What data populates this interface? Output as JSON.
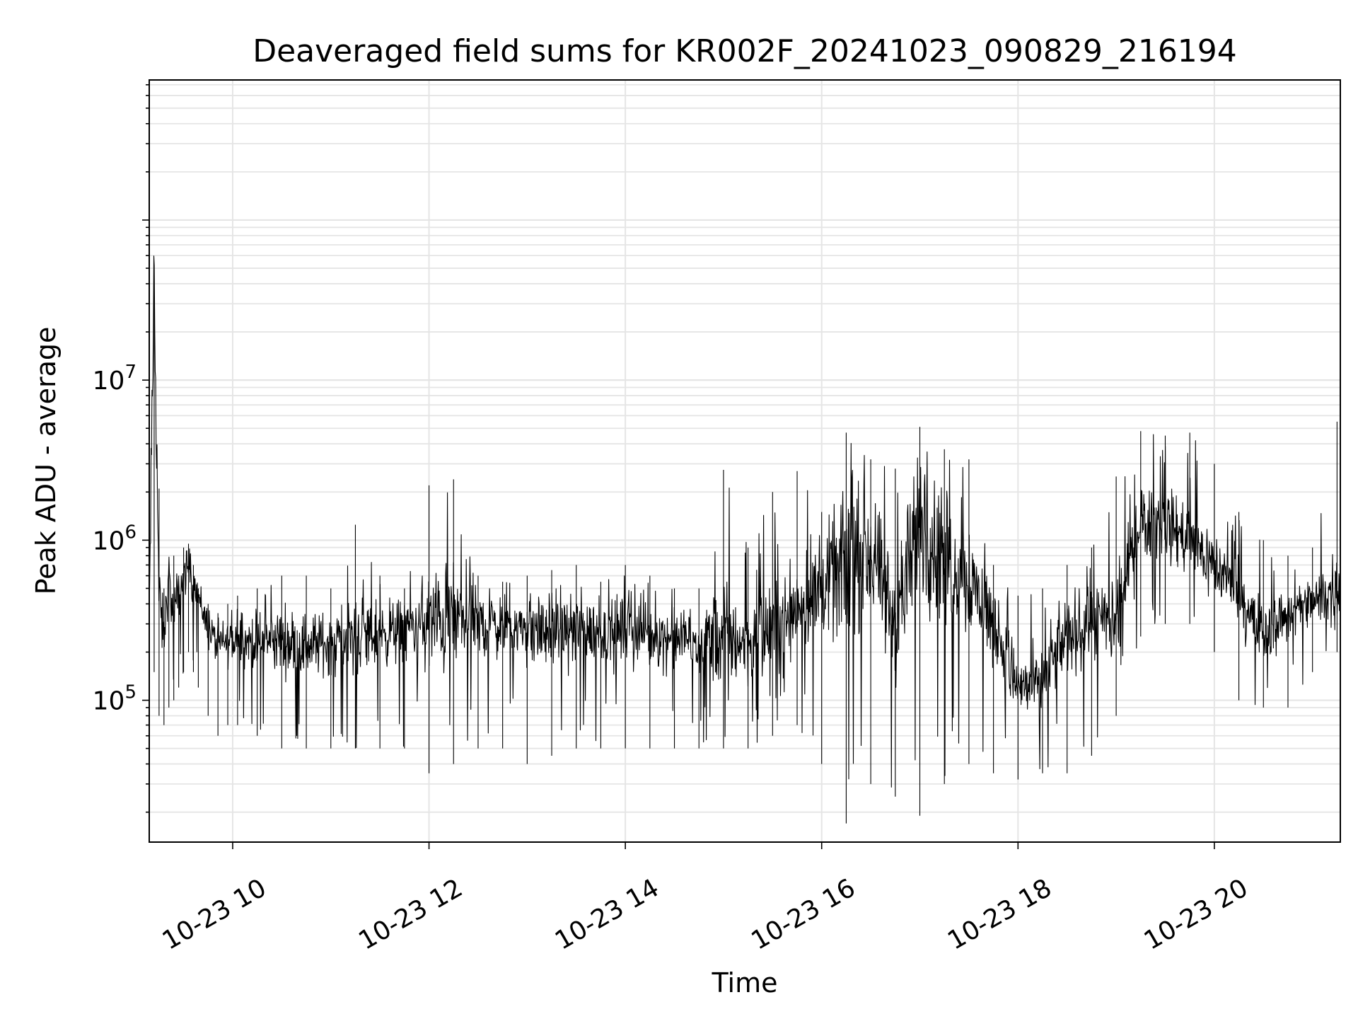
{
  "chart_data": {
    "type": "line",
    "title": "Deaveraged field sums for KR002F_20241023_090829_216194",
    "xlabel": "Time",
    "ylabel": "Peak ADU - average",
    "yscale": "log",
    "xlim": [
      "2024-10-23 09:09",
      "2024-10-23 21:17"
    ],
    "ylim": [
      13000,
      750000000
    ],
    "grid": true,
    "colors": {
      "line": "#000000",
      "grid": "#e5e5e5"
    },
    "x_ticks": [
      {
        "t": "2024-10-23 10:00",
        "label": "10-23 10"
      },
      {
        "t": "2024-10-23 12:00",
        "label": "10-23 12"
      },
      {
        "t": "2024-10-23 14:00",
        "label": "10-23 14"
      },
      {
        "t": "2024-10-23 16:00",
        "label": "10-23 16"
      },
      {
        "t": "2024-10-23 18:00",
        "label": "10-23 18"
      },
      {
        "t": "2024-10-23 20:00",
        "label": "10-23 20"
      }
    ],
    "y_ticks": [
      {
        "value": 100000,
        "base": "10",
        "exp": "5"
      },
      {
        "value": 1000000,
        "base": "10",
        "exp": "6"
      },
      {
        "value": 10000000,
        "base": "10",
        "exp": "7"
      }
    ],
    "series": [
      {
        "color": "#000000",
        "x": [
          "2024-10-23 09:09",
          "2024-10-23 09:12",
          "2024-10-23 09:15",
          "2024-10-23 09:18",
          "2024-10-23 09:21",
          "2024-10-23 09:24",
          "2024-10-23 09:27",
          "2024-10-23 09:30",
          "2024-10-23 09:33",
          "2024-10-23 09:36",
          "2024-10-23 09:39",
          "2024-10-23 09:45",
          "2024-10-23 09:51",
          "2024-10-23 09:57",
          "2024-10-23 10:03",
          "2024-10-23 10:15",
          "2024-10-23 10:30",
          "2024-10-23 10:45",
          "2024-10-23 11:00",
          "2024-10-23 11:15",
          "2024-10-23 11:30",
          "2024-10-23 11:45",
          "2024-10-23 12:00",
          "2024-10-23 12:15",
          "2024-10-23 12:30",
          "2024-10-23 12:45",
          "2024-10-23 13:00",
          "2024-10-23 13:15",
          "2024-10-23 13:30",
          "2024-10-23 13:45",
          "2024-10-23 14:00",
          "2024-10-23 14:15",
          "2024-10-23 14:30",
          "2024-10-23 14:45",
          "2024-10-23 15:00",
          "2024-10-23 15:15",
          "2024-10-23 15:30",
          "2024-10-23 15:45",
          "2024-10-23 16:00",
          "2024-10-23 16:15",
          "2024-10-23 16:30",
          "2024-10-23 16:45",
          "2024-10-23 17:00",
          "2024-10-23 17:15",
          "2024-10-23 17:30",
          "2024-10-23 17:45",
          "2024-10-23 18:00",
          "2024-10-23 18:15",
          "2024-10-23 18:30",
          "2024-10-23 18:45",
          "2024-10-23 19:00",
          "2024-10-23 19:15",
          "2024-10-23 19:30",
          "2024-10-23 19:45",
          "2024-10-23 20:00",
          "2024-10-23 20:15",
          "2024-10-23 20:30",
          "2024-10-23 20:45",
          "2024-10-23 21:00",
          "2024-10-23 21:15"
        ],
        "y": [
          300000,
          50000000,
          400000,
          250000,
          600000,
          300000,
          450000,
          600000,
          700000,
          500000,
          450000,
          280000,
          220000,
          230000,
          240000,
          230000,
          240000,
          220000,
          230000,
          250000,
          260000,
          280000,
          300000,
          320000,
          300000,
          290000,
          280000,
          270000,
          280000,
          260000,
          270000,
          260000,
          240000,
          230000,
          250000,
          230000,
          280000,
          400000,
          500000,
          700000,
          800000,
          300000,
          1200000,
          800000,
          600000,
          300000,
          120000,
          130000,
          260000,
          300000,
          300000,
          1400000,
          1300000,
          1000000,
          700000,
          450000,
          250000,
          350000,
          400000,
          500000
        ],
        "hi": [
          900000,
          50000000,
          2100000,
          500000,
          700000,
          800000,
          600000,
          900000,
          950000,
          700000,
          500000,
          400000,
          350000,
          400000,
          450000,
          500000,
          600000,
          600000,
          500000,
          1250000,
          600000,
          500000,
          2200000,
          2400000,
          600000,
          550000,
          600000,
          650000,
          700000,
          550000,
          700000,
          600000,
          500000,
          500000,
          2750000,
          900000,
          2000000,
          2700000,
          1500000,
          4700000,
          3200000,
          2800000,
          5100000,
          3700000,
          3200000,
          700000,
          450000,
          500000,
          700000,
          900000,
          2500000,
          4800000,
          4500000,
          4700000,
          3000000,
          1500000,
          1000000,
          800000,
          900000,
          5500000
        ],
        "lo": [
          150000,
          150000,
          80000,
          70000,
          90000,
          100000,
          120000,
          150000,
          200000,
          150000,
          120000,
          80000,
          60000,
          70000,
          70000,
          60000,
          50000,
          50000,
          50000,
          50000,
          50000,
          50000,
          35000,
          40000,
          50000,
          50000,
          40000,
          45000,
          50000,
          50000,
          50000,
          50000,
          50000,
          50000,
          50000,
          50000,
          60000,
          70000,
          40000,
          17000,
          30000,
          25000,
          19000,
          30000,
          40000,
          35000,
          32000,
          35000,
          35000,
          45000,
          80000,
          250000,
          300000,
          300000,
          200000,
          100000,
          90000,
          90000,
          150000,
          200000
        ]
      }
    ]
  }
}
